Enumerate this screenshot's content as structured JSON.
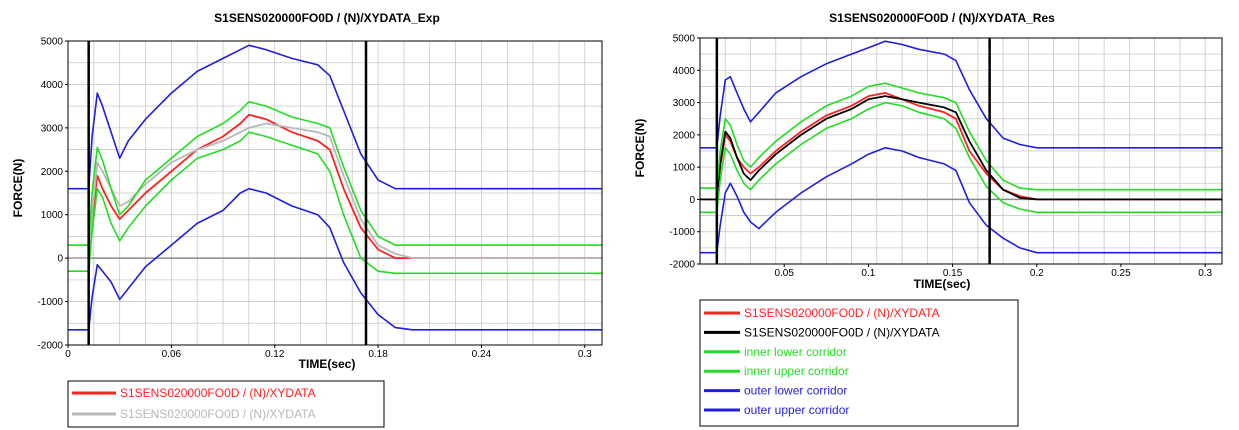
{
  "chart_data": [
    {
      "type": "line",
      "title": "S1SENS020000FO0D / (N)/XYDATA_Exp",
      "xlabel": "TIME(sec)",
      "ylabel": "FORCE(N)",
      "xlim": [
        0,
        0.31
      ],
      "ylim": [
        -2000,
        5000
      ],
      "xticks": [
        0,
        0.06,
        0.12,
        0.18,
        0.24,
        0.3
      ],
      "xtick_labels": [
        "0",
        "0.06",
        "0.12",
        "0.18",
        "0.24",
        "0.3"
      ],
      "yticks": [
        -2000,
        -1000,
        0,
        1000,
        2000,
        3000,
        4000,
        5000
      ],
      "ytick_labels": [
        "-2000",
        "-1000",
        "0",
        "1000",
        "2000",
        "3000",
        "4000",
        "5000"
      ],
      "grid": true,
      "legend_placement": "bottom",
      "vlines": [
        0.012,
        0.173
      ],
      "series": [
        {
          "name": "S1SENS020000FO0D / (N)/XYDATA",
          "color": "#ff2020",
          "in_legend": true,
          "width": 1.8,
          "x": [
            0,
            0.012,
            0.014,
            0.017,
            0.02,
            0.025,
            0.03,
            0.035,
            0.045,
            0.06,
            0.075,
            0.09,
            0.1,
            0.105,
            0.115,
            0.13,
            0.145,
            0.152,
            0.16,
            0.17,
            0.18,
            0.19,
            0.2,
            0.31
          ],
          "y": [
            0,
            0,
            900,
            1900,
            1600,
            1200,
            900,
            1100,
            1500,
            2000,
            2500,
            2800,
            3100,
            3300,
            3200,
            2900,
            2700,
            2500,
            1600,
            700,
            200,
            0,
            0,
            0
          ]
        },
        {
          "name": "S1SENS020000FO0D / (N)/XYDATA",
          "color": "#b8b8b8",
          "in_legend": true,
          "width": 1.8,
          "x": [
            0,
            0.012,
            0.014,
            0.017,
            0.02,
            0.025,
            0.03,
            0.035,
            0.045,
            0.06,
            0.075,
            0.09,
            0.1,
            0.105,
            0.115,
            0.13,
            0.145,
            0.152,
            0.16,
            0.17,
            0.18,
            0.19,
            0.2,
            0.31
          ],
          "y": [
            0,
            0,
            1000,
            2200,
            2000,
            1600,
            1200,
            1300,
            1700,
            2200,
            2500,
            2700,
            2900,
            3000,
            3100,
            3000,
            2900,
            2800,
            1900,
            900,
            300,
            100,
            0,
            0
          ]
        },
        {
          "name": "inner lower corridor",
          "color": "#22dd22",
          "in_legend": false,
          "width": 1.6,
          "x": [
            0,
            0.012,
            0.014,
            0.017,
            0.02,
            0.025,
            0.03,
            0.035,
            0.045,
            0.06,
            0.075,
            0.09,
            0.1,
            0.105,
            0.115,
            0.13,
            0.145,
            0.152,
            0.16,
            0.17,
            0.18,
            0.19,
            0.2,
            0.31
          ],
          "y": [
            -300,
            -300,
            600,
            1600,
            1400,
            800,
            400,
            700,
            1200,
            1800,
            2300,
            2500,
            2700,
            2900,
            2800,
            2600,
            2400,
            2000,
            1000,
            0,
            -300,
            -350,
            -350,
            -350
          ]
        },
        {
          "name": "inner upper corridor",
          "color": "#22dd22",
          "in_legend": false,
          "width": 1.6,
          "x": [
            0,
            0.012,
            0.014,
            0.017,
            0.02,
            0.025,
            0.03,
            0.035,
            0.045,
            0.06,
            0.075,
            0.09,
            0.1,
            0.105,
            0.115,
            0.13,
            0.145,
            0.152,
            0.16,
            0.17,
            0.18,
            0.19,
            0.2,
            0.31
          ],
          "y": [
            300,
            300,
            1500,
            2550,
            2250,
            1600,
            1000,
            1200,
            1800,
            2300,
            2800,
            3100,
            3400,
            3600,
            3500,
            3250,
            3100,
            3000,
            2100,
            1100,
            500,
            300,
            300,
            300
          ]
        },
        {
          "name": "outer lower corridor",
          "color": "#1f1fdd",
          "in_legend": false,
          "width": 1.6,
          "x": [
            0,
            0.012,
            0.014,
            0.017,
            0.02,
            0.025,
            0.03,
            0.035,
            0.045,
            0.06,
            0.075,
            0.09,
            0.1,
            0.105,
            0.115,
            0.13,
            0.145,
            0.152,
            0.16,
            0.17,
            0.18,
            0.19,
            0.2,
            0.31
          ],
          "y": [
            -1650,
            -1650,
            -900,
            -150,
            -300,
            -550,
            -950,
            -700,
            -200,
            300,
            800,
            1100,
            1500,
            1600,
            1500,
            1200,
            1000,
            700,
            -100,
            -800,
            -1300,
            -1600,
            -1650,
            -1650
          ]
        },
        {
          "name": "outer upper corridor",
          "color": "#1f1fdd",
          "in_legend": false,
          "width": 1.6,
          "x": [
            0,
            0.012,
            0.014,
            0.017,
            0.02,
            0.025,
            0.03,
            0.035,
            0.045,
            0.06,
            0.075,
            0.09,
            0.1,
            0.105,
            0.115,
            0.13,
            0.145,
            0.152,
            0.16,
            0.17,
            0.18,
            0.19,
            0.2,
            0.31
          ],
          "y": [
            1600,
            1600,
            2800,
            3800,
            3500,
            2900,
            2300,
            2700,
            3200,
            3800,
            4300,
            4600,
            4800,
            4900,
            4800,
            4600,
            4450,
            4200,
            3400,
            2400,
            1800,
            1600,
            1600,
            1600
          ]
        }
      ],
      "legend": [
        {
          "label": "S1SENS020000FO0D / (N)/XYDATA",
          "color": "#ff2020"
        },
        {
          "label": "S1SENS020000FO0D / (N)/XYDATA",
          "color": "#b8b8b8"
        }
      ]
    },
    {
      "type": "line",
      "title": "S1SENS020000FO0D / (N)/XYDATA_Res",
      "xlabel": "TIME(sec)",
      "ylabel": "FORCE(N)",
      "xlim": [
        0,
        0.31
      ],
      "ylim": [
        -2000,
        5000
      ],
      "xticks": [
        0.05,
        0.1,
        0.15,
        0.2,
        0.25,
        0.3
      ],
      "xtick_labels": [
        "0.05",
        "0.1",
        "0.15",
        "0.2",
        "0.25",
        "0.3"
      ],
      "yticks": [
        -2000,
        -1000,
        0,
        1000,
        2000,
        3000,
        4000,
        5000
      ],
      "ytick_labels": [
        "-2000",
        "-1000",
        "0",
        "1000",
        "2000",
        "3000",
        "4000",
        "5000"
      ],
      "grid": true,
      "legend_placement": "bottom",
      "vlines": [
        0.01,
        0.172
      ],
      "series": [
        {
          "name": "S1SENS020000FO0D / (N)/XYDATA",
          "color": "#ff2020",
          "in_legend": true,
          "width": 1.8,
          "x": [
            0,
            0.01,
            0.012,
            0.015,
            0.018,
            0.022,
            0.026,
            0.03,
            0.035,
            0.045,
            0.06,
            0.075,
            0.09,
            0.1,
            0.11,
            0.12,
            0.13,
            0.145,
            0.152,
            0.16,
            0.17,
            0.18,
            0.19,
            0.2,
            0.31
          ],
          "y": [
            0,
            0,
            1000,
            2000,
            1800,
            1300,
            1000,
            800,
            1000,
            1500,
            2100,
            2600,
            2900,
            3200,
            3300,
            3100,
            2900,
            2700,
            2500,
            1500,
            800,
            300,
            100,
            0,
            0
          ]
        },
        {
          "name": "S1SENS020000FO0D / (N)/XYDATA",
          "color": "#000000",
          "in_legend": true,
          "width": 1.8,
          "x": [
            0,
            0.01,
            0.012,
            0.015,
            0.018,
            0.022,
            0.026,
            0.03,
            0.035,
            0.045,
            0.06,
            0.075,
            0.09,
            0.1,
            0.11,
            0.12,
            0.13,
            0.145,
            0.152,
            0.16,
            0.17,
            0.18,
            0.19,
            0.2,
            0.31
          ],
          "y": [
            0,
            0,
            1100,
            2100,
            1900,
            1300,
            800,
            600,
            900,
            1400,
            2000,
            2500,
            2800,
            3100,
            3200,
            3100,
            3000,
            2850,
            2700,
            1800,
            900,
            300,
            50,
            0,
            0
          ]
        },
        {
          "name": "inner lower corridor",
          "color": "#22dd22",
          "in_legend": true,
          "width": 1.6,
          "x": [
            0,
            0.01,
            0.012,
            0.015,
            0.018,
            0.022,
            0.026,
            0.03,
            0.035,
            0.045,
            0.06,
            0.075,
            0.09,
            0.1,
            0.11,
            0.12,
            0.13,
            0.145,
            0.152,
            0.16,
            0.17,
            0.18,
            0.19,
            0.2,
            0.31
          ],
          "y": [
            -400,
            -400,
            600,
            1600,
            1400,
            900,
            500,
            300,
            600,
            1100,
            1700,
            2200,
            2500,
            2800,
            3000,
            2900,
            2700,
            2500,
            2200,
            1300,
            400,
            -100,
            -300,
            -400,
            -400
          ]
        },
        {
          "name": "inner upper corridor",
          "color": "#22dd22",
          "in_legend": true,
          "width": 1.6,
          "x": [
            0,
            0.01,
            0.012,
            0.015,
            0.018,
            0.022,
            0.026,
            0.03,
            0.035,
            0.045,
            0.06,
            0.075,
            0.09,
            0.1,
            0.11,
            0.12,
            0.13,
            0.145,
            0.152,
            0.16,
            0.17,
            0.18,
            0.19,
            0.2,
            0.31
          ],
          "y": [
            350,
            350,
            1500,
            2500,
            2300,
            1700,
            1200,
            1000,
            1300,
            1800,
            2400,
            2900,
            3200,
            3500,
            3600,
            3450,
            3300,
            3150,
            3000,
            2100,
            1200,
            600,
            350,
            300,
            300
          ]
        },
        {
          "name": "outer lower corridor",
          "color": "#1f1fdd",
          "in_legend": true,
          "width": 1.6,
          "x": [
            0,
            0.01,
            0.012,
            0.015,
            0.018,
            0.022,
            0.026,
            0.03,
            0.035,
            0.045,
            0.06,
            0.075,
            0.09,
            0.1,
            0.11,
            0.12,
            0.13,
            0.145,
            0.152,
            0.16,
            0.17,
            0.18,
            0.19,
            0.2,
            0.31
          ],
          "y": [
            -1650,
            -1650,
            -800,
            200,
            500,
            100,
            -400,
            -700,
            -900,
            -400,
            200,
            700,
            1100,
            1400,
            1600,
            1500,
            1300,
            1100,
            900,
            -100,
            -800,
            -1200,
            -1500,
            -1650,
            -1650
          ]
        },
        {
          "name": "outer upper corridor",
          "color": "#1f1fdd",
          "in_legend": true,
          "width": 1.6,
          "x": [
            0,
            0.01,
            0.012,
            0.015,
            0.018,
            0.022,
            0.026,
            0.03,
            0.035,
            0.045,
            0.06,
            0.075,
            0.09,
            0.1,
            0.11,
            0.12,
            0.13,
            0.145,
            0.152,
            0.16,
            0.17,
            0.18,
            0.19,
            0.2,
            0.31
          ],
          "y": [
            1600,
            1600,
            2600,
            3700,
            3800,
            3300,
            2800,
            2400,
            2700,
            3300,
            3800,
            4200,
            4500,
            4700,
            4900,
            4800,
            4650,
            4500,
            4300,
            3400,
            2500,
            1900,
            1700,
            1600,
            1600
          ]
        }
      ],
      "legend": [
        {
          "label": "S1SENS020000FO0D / (N)/XYDATA",
          "color": "#ff2020"
        },
        {
          "label": "S1SENS020000FO0D / (N)/XYDATA",
          "color": "#000000"
        },
        {
          "label": "inner lower corridor",
          "color": "#22dd22"
        },
        {
          "label": "inner upper corridor",
          "color": "#22dd22"
        },
        {
          "label": "outer lower corridor",
          "color": "#1f1fdd"
        },
        {
          "label": "outer upper corridor",
          "color": "#1f1fdd"
        }
      ]
    }
  ]
}
